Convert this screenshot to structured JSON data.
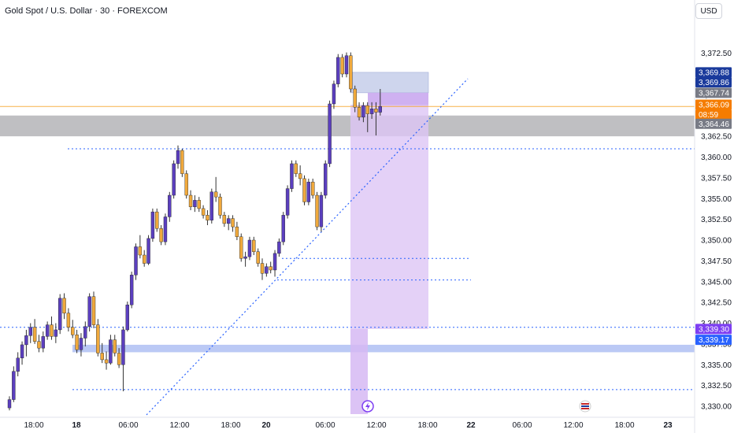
{
  "header": {
    "title": "Gold Spot / U.S. Dollar · 30 · FOREXCOM",
    "currency": "USD"
  },
  "colors": {
    "bull": "#5b3fbf",
    "bear": "#f0a93c",
    "wick": "#333333",
    "support_line": "#2962ff",
    "zone_gray": "#a9a9ad",
    "zone_blue": "#aabcf3",
    "zone_purple": "#ddc6f5",
    "stop_zone": "#c9d1ec",
    "current_price": "#f57c00"
  },
  "chart_data": {
    "type": "candlestick",
    "y_range": [
      3329,
      3374
    ],
    "y_ticks": [
      "3,372.50",
      "3,370.00",
      "3,367.50",
      "3,365.00",
      "3,362.50",
      "3,360.00",
      "3,357.50",
      "3,355.00",
      "3,352.50",
      "3,350.00",
      "3,347.50",
      "3,345.00",
      "3,342.50",
      "3,340.00",
      "3,337.50",
      "3,335.00",
      "3,332.50",
      "3,330.00"
    ],
    "x_ticks": [
      {
        "label": "18:00",
        "bold": false
      },
      {
        "label": "18",
        "bold": true
      },
      {
        "label": "06:00",
        "bold": false
      },
      {
        "label": "12:00",
        "bold": false
      },
      {
        "label": "18:00",
        "bold": false
      },
      {
        "label": "20",
        "bold": true
      },
      {
        "label": "06:00",
        "bold": false
      },
      {
        "label": "12:00",
        "bold": false
      },
      {
        "label": "18:00",
        "bold": false
      },
      {
        "label": "22",
        "bold": true
      },
      {
        "label": "06:00",
        "bold": false
      },
      {
        "label": "12:00",
        "bold": false
      },
      {
        "label": "18:00",
        "bold": false
      },
      {
        "label": "23",
        "bold": true
      }
    ],
    "price_tags": [
      {
        "label": "3,369.88",
        "value": 3370.2,
        "color": "#1a3a9c"
      },
      {
        "label": "3,369.86",
        "value": 3369.0,
        "color": "#1a3a9c"
      },
      {
        "label": "3,367.74",
        "value": 3367.74,
        "color": "#787b86"
      },
      {
        "label": "3,366.09",
        "value": 3366.3,
        "color": "#f57c00"
      },
      {
        "label": "08:59",
        "value": 3365.1,
        "color": "#f57c00"
      },
      {
        "label": "3,364.46",
        "value": 3364.0,
        "color": "#787b86"
      },
      {
        "label": "3,339.30",
        "value": 3339.3,
        "color": "#7e3ff2"
      },
      {
        "label": "3,339.17",
        "value": 3338.0,
        "color": "#2962ff"
      }
    ],
    "levels": {
      "resistance_dotted": 3361.0,
      "support_dotted_1": 3339.5,
      "support_dotted_2": 3332.0,
      "mid_dotted_1": 3347.8,
      "mid_dotted_2": 3345.2,
      "current_price": 3366.09
    },
    "zones": {
      "gray_zone": [
        3362.5,
        3365.0
      ],
      "blue_zone": [
        3336.5,
        3337.4
      ],
      "stop": [
        3367.74,
        3370.2
      ],
      "target": [
        3339.3,
        3366.3
      ]
    },
    "candles": [
      [
        3329.8,
        3331.2,
        3329.5,
        3330.8
      ],
      [
        3330.8,
        3334.8,
        3330.5,
        3334.2
      ],
      [
        3334.2,
        3336.5,
        3333.6,
        3335.8
      ],
      [
        3335.8,
        3337.8,
        3335.0,
        3337.4
      ],
      [
        3337.4,
        3339.2,
        3336.0,
        3338.5
      ],
      [
        3338.5,
        3340.0,
        3337.6,
        3339.5
      ],
      [
        3339.5,
        3340.5,
        3337.5,
        3337.8
      ],
      [
        3337.8,
        3338.6,
        3336.5,
        3337.0
      ],
      [
        3337.0,
        3339.0,
        3336.5,
        3338.4
      ],
      [
        3338.4,
        3340.2,
        3338.0,
        3339.8
      ],
      [
        3339.8,
        3340.8,
        3338.0,
        3338.4
      ],
      [
        3338.4,
        3340.0,
        3337.6,
        3339.2
      ],
      [
        3339.2,
        3343.5,
        3338.7,
        3343.0
      ],
      [
        3343.0,
        3343.6,
        3340.5,
        3341.2
      ],
      [
        3341.2,
        3341.8,
        3339.0,
        3339.5
      ],
      [
        3339.5,
        3340.4,
        3338.2,
        3338.6
      ],
      [
        3338.6,
        3339.2,
        3336.4,
        3336.8
      ],
      [
        3336.8,
        3338.8,
        3336.0,
        3338.2
      ],
      [
        3338.2,
        3340.2,
        3337.2,
        3339.6
      ],
      [
        3339.6,
        3343.6,
        3339.0,
        3343.2
      ],
      [
        3343.2,
        3343.8,
        3339.4,
        3339.8
      ],
      [
        3339.8,
        3340.5,
        3336.0,
        3336.4
      ],
      [
        3336.4,
        3337.6,
        3335.2,
        3335.6
      ],
      [
        3335.6,
        3336.6,
        3334.4,
        3335.2
      ],
      [
        3335.2,
        3338.6,
        3335.0,
        3338.0
      ],
      [
        3338.0,
        3338.6,
        3336.0,
        3336.4
      ],
      [
        3336.4,
        3337.0,
        3334.6,
        3335.0
      ],
      [
        3335.0,
        3339.6,
        3331.8,
        3339.2
      ],
      [
        3339.2,
        3342.6,
        3339.0,
        3342.2
      ],
      [
        3342.2,
        3346.2,
        3341.8,
        3345.8
      ],
      [
        3345.8,
        3349.6,
        3345.2,
        3349.2
      ],
      [
        3349.2,
        3350.6,
        3347.8,
        3348.2
      ],
      [
        3348.2,
        3348.8,
        3346.8,
        3347.2
      ],
      [
        3347.2,
        3350.6,
        3347.0,
        3350.2
      ],
      [
        3350.2,
        3353.8,
        3349.8,
        3353.4
      ],
      [
        3353.4,
        3353.8,
        3351.0,
        3351.4
      ],
      [
        3351.4,
        3351.8,
        3349.4,
        3349.8
      ],
      [
        3349.8,
        3353.2,
        3349.4,
        3352.8
      ],
      [
        3352.8,
        3355.8,
        3352.2,
        3355.4
      ],
      [
        3355.4,
        3359.6,
        3355.0,
        3359.2
      ],
      [
        3359.2,
        3361.4,
        3358.6,
        3360.8
      ],
      [
        3360.8,
        3361.0,
        3357.6,
        3358.0
      ],
      [
        3358.0,
        3358.4,
        3355.0,
        3355.4
      ],
      [
        3355.4,
        3356.0,
        3353.6,
        3354.0
      ],
      [
        3354.0,
        3355.4,
        3353.4,
        3354.8
      ],
      [
        3354.8,
        3355.2,
        3353.4,
        3353.8
      ],
      [
        3353.8,
        3354.2,
        3352.6,
        3353.0
      ],
      [
        3353.0,
        3353.6,
        3351.8,
        3352.4
      ],
      [
        3352.4,
        3356.2,
        3352.0,
        3355.8
      ],
      [
        3355.8,
        3357.6,
        3354.6,
        3355.2
      ],
      [
        3355.2,
        3355.6,
        3352.6,
        3353.0
      ],
      [
        3353.0,
        3353.4,
        3351.6,
        3352.0
      ],
      [
        3352.0,
        3353.0,
        3351.2,
        3352.6
      ],
      [
        3352.6,
        3353.0,
        3351.0,
        3351.6
      ],
      [
        3351.6,
        3352.2,
        3350.0,
        3350.4
      ],
      [
        3350.4,
        3350.8,
        3347.4,
        3347.8
      ],
      [
        3347.8,
        3348.6,
        3346.8,
        3348.0
      ],
      [
        3348.0,
        3350.4,
        3347.6,
        3350.0
      ],
      [
        3350.0,
        3350.4,
        3348.2,
        3348.6
      ],
      [
        3348.6,
        3349.0,
        3346.8,
        3347.2
      ],
      [
        3347.2,
        3347.8,
        3345.2,
        3346.0
      ],
      [
        3346.0,
        3347.2,
        3345.6,
        3346.8
      ],
      [
        3346.8,
        3347.4,
        3346.0,
        3346.4
      ],
      [
        3346.4,
        3348.8,
        3345.6,
        3348.4
      ],
      [
        3348.4,
        3350.2,
        3348.0,
        3349.8
      ],
      [
        3349.8,
        3353.4,
        3349.4,
        3353.0
      ],
      [
        3353.0,
        3356.6,
        3352.6,
        3356.2
      ],
      [
        3356.2,
        3359.6,
        3355.8,
        3359.2
      ],
      [
        3359.2,
        3359.6,
        3357.6,
        3358.0
      ],
      [
        3358.0,
        3359.0,
        3356.6,
        3357.4
      ],
      [
        3357.4,
        3357.8,
        3354.2,
        3354.6
      ],
      [
        3354.6,
        3357.4,
        3354.2,
        3357.0
      ],
      [
        3357.0,
        3357.4,
        3355.0,
        3355.4
      ],
      [
        3355.4,
        3355.8,
        3351.2,
        3351.6
      ],
      [
        3351.6,
        3355.8,
        3351.0,
        3355.4
      ],
      [
        3355.4,
        3359.6,
        3355.0,
        3359.2
      ],
      [
        3359.2,
        3366.8,
        3358.8,
        3366.4
      ],
      [
        3366.4,
        3369.2,
        3365.8,
        3368.8
      ],
      [
        3368.8,
        3372.4,
        3368.4,
        3372.0
      ],
      [
        3372.0,
        3372.4,
        3369.6,
        3370.0
      ],
      [
        3370.0,
        3372.6,
        3369.6,
        3372.2
      ],
      [
        3372.2,
        3372.6,
        3367.8,
        3368.2
      ],
      [
        3368.2,
        3368.6,
        3365.4,
        3366.0
      ],
      [
        3366.0,
        3366.6,
        3364.4,
        3364.8
      ],
      [
        3364.8,
        3366.6,
        3364.2,
        3366.2
      ],
      [
        3366.2,
        3366.6,
        3363.0,
        3365.2
      ],
      [
        3365.2,
        3366.6,
        3364.6,
        3365.8
      ],
      [
        3365.8,
        3366.6,
        3362.6,
        3365.4
      ],
      [
        3365.4,
        3368.2,
        3365.0,
        3366.1
      ]
    ]
  }
}
